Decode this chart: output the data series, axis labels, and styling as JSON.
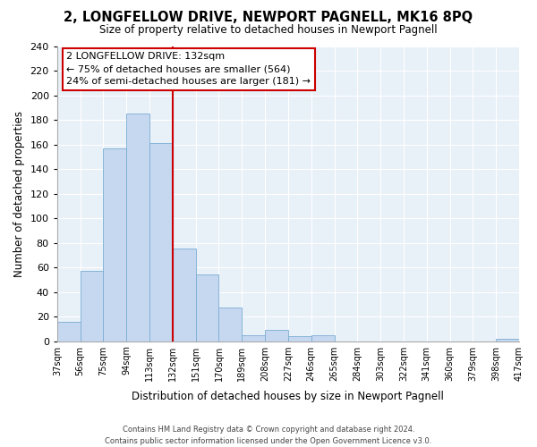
{
  "title": "2, LONGFELLOW DRIVE, NEWPORT PAGNELL, MK16 8PQ",
  "subtitle": "Size of property relative to detached houses in Newport Pagnell",
  "xlabel": "Distribution of detached houses by size in Newport Pagnell",
  "ylabel": "Number of detached properties",
  "bar_color": "#c5d8f0",
  "bar_edge_color": "#7aadd4",
  "vline_color": "#cc0000",
  "bin_labels": [
    "37sqm",
    "56sqm",
    "75sqm",
    "94sqm",
    "113sqm",
    "132sqm",
    "151sqm",
    "170sqm",
    "189sqm",
    "208sqm",
    "227sqm",
    "246sqm",
    "265sqm",
    "284sqm",
    "303sqm",
    "322sqm",
    "341sqm",
    "360sqm",
    "379sqm",
    "398sqm",
    "417sqm"
  ],
  "counts": [
    16,
    57,
    157,
    185,
    161,
    75,
    54,
    27,
    5,
    9,
    4,
    5,
    0,
    0,
    0,
    0,
    0,
    0,
    0,
    2
  ],
  "vline_bin_index": 5,
  "ylim": [
    0,
    240
  ],
  "yticks": [
    0,
    20,
    40,
    60,
    80,
    100,
    120,
    140,
    160,
    180,
    200,
    220,
    240
  ],
  "annotation_title": "2 LONGFELLOW DRIVE: 132sqm",
  "annotation_line1": "← 75% of detached houses are smaller (564)",
  "annotation_line2": "24% of semi-detached houses are larger (181) →",
  "annotation_box_color": "#ffffff",
  "annotation_box_edge": "#cc0000",
  "footer_line1": "Contains HM Land Registry data © Crown copyright and database right 2024.",
  "footer_line2": "Contains public sector information licensed under the Open Government Licence v3.0.",
  "background_color": "#ffffff",
  "ax_background": "#e8f0f8",
  "grid_color": "#ffffff"
}
